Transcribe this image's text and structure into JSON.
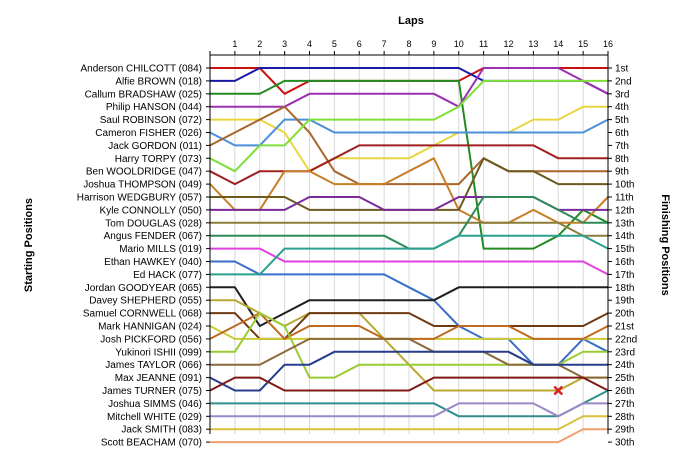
{
  "chart_data": {
    "type": "line",
    "xlabel": "Laps",
    "ylabel_left": "Starting Positions",
    "ylabel_right": "Finishing Positions",
    "laps": [
      1,
      2,
      3,
      4,
      5,
      6,
      7,
      8,
      9,
      10,
      11,
      12,
      13,
      14,
      15,
      16
    ],
    "lap_labels": [
      "1",
      "2",
      "3",
      "4",
      "5",
      "6",
      "7",
      "8",
      "9",
      "10",
      "11",
      "12",
      "13",
      "14",
      "15",
      "16"
    ],
    "drivers": [
      "Anderson CHILCOTT (084)",
      "Alfie BROWN (018)",
      "Callum BRADSHAW (025)",
      "Philip HANSON (044)",
      "Saul ROBINSON (072)",
      "Cameron FISHER (026)",
      "Jack GORDON (011)",
      "Harry TORPY (073)",
      "Ben WOOLDRIDGE (047)",
      "Joshua THOMPSON (049)",
      "Harrison WEDGBURY (057)",
      "Kyle CONNOLLY (050)",
      "Tom DOUGLAS (028)",
      "Angus FENDER (067)",
      "Mario MILLS (019)",
      "Ethan HAWKEY (040)",
      "Ed HACK (077)",
      "Jordan GOODYEAR (065)",
      "Davey SHEPHERD (055)",
      "Samuel CORNWELL (068)",
      "Mark HANNIGAN (024)",
      "Josh PICKFORD (056)",
      "Yukinori ISHII (099)",
      "James TAYLOR (066)",
      "Max JEANNE (091)",
      "James TURNER (075)",
      "Joshua SIMMS (046)",
      "Mitchell WHITE (029)",
      "Jack SMITH (083)",
      "Scott BEACHAM (070)"
    ],
    "finish_labels": [
      "1st",
      "2nd",
      "3rd",
      "4th",
      "5th",
      "6th",
      "7th",
      "8th",
      "9th",
      "10th",
      "11th",
      "12th",
      "13th",
      "14th",
      "15th",
      "16th",
      "17th",
      "18th",
      "19th",
      "20th",
      "21st",
      "22nd",
      "23rd",
      "24th",
      "25th",
      "26th",
      "27th",
      "28th",
      "29th",
      "30th"
    ],
    "series": [
      {
        "color": "#cc1111",
        "positions": [
          1,
          1,
          3,
          2,
          2,
          2,
          2,
          2,
          2,
          2,
          1,
          1,
          1,
          1,
          1,
          1
        ]
      },
      {
        "color": "#1a1aa8",
        "positions": [
          2,
          1,
          1,
          1,
          1,
          1,
          1,
          1,
          1,
          1,
          2,
          2,
          2,
          2,
          2,
          3
        ]
      },
      {
        "color": "#228b22",
        "positions": [
          3,
          3,
          2,
          2,
          2,
          2,
          2,
          2,
          2,
          2,
          15,
          15,
          15,
          14,
          12,
          13
        ]
      },
      {
        "color": "#9b30b0",
        "positions": [
          4,
          4,
          4,
          3,
          3,
          3,
          3,
          3,
          3,
          4,
          1,
          1,
          1,
          1,
          2,
          3
        ]
      },
      {
        "color": "#e8d640",
        "positions": [
          5,
          5,
          6,
          9,
          8,
          8,
          8,
          8,
          7,
          6,
          6,
          6,
          5,
          5,
          4,
          4
        ]
      },
      {
        "color": "#4a90d9",
        "positions": [
          7,
          7,
          5,
          5,
          6,
          6,
          6,
          6,
          6,
          6,
          6,
          6,
          6,
          6,
          6,
          5
        ]
      },
      {
        "color": "#a8652a",
        "positions": [
          6,
          5,
          4,
          6,
          9,
          10,
          10,
          10,
          10,
          10,
          8,
          9,
          9,
          9,
          9,
          9
        ]
      },
      {
        "color": "#7fe03a",
        "positions": [
          9,
          7,
          7,
          5,
          5,
          5,
          5,
          5,
          5,
          4,
          2,
          2,
          2,
          2,
          2,
          2
        ]
      },
      {
        "color": "#a02020",
        "positions": [
          10,
          9,
          9,
          9,
          8,
          7,
          7,
          7,
          7,
          7,
          7,
          7,
          7,
          8,
          8,
          8
        ]
      },
      {
        "color": "#c87f2a",
        "positions": [
          12,
          12,
          9,
          9,
          10,
          10,
          10,
          9,
          8,
          12,
          13,
          13,
          12,
          13,
          13,
          11
        ]
      },
      {
        "color": "#6e5a1e",
        "positions": [
          11,
          11,
          11,
          12,
          12,
          12,
          12,
          12,
          12,
          12,
          8,
          9,
          9,
          10,
          10,
          10
        ]
      },
      {
        "color": "#7a2a9a",
        "positions": [
          12,
          12,
          12,
          11,
          11,
          11,
          12,
          12,
          12,
          11,
          11,
          11,
          11,
          12,
          12,
          12
        ]
      },
      {
        "color": "#8b7f3a",
        "positions": [
          13,
          13,
          13,
          13,
          13,
          13,
          13,
          13,
          13,
          13,
          13,
          13,
          13,
          13,
          14,
          14
        ]
      },
      {
        "color": "#2e8b57",
        "positions": [
          14,
          14,
          14,
          14,
          14,
          14,
          14,
          15,
          15,
          14,
          11,
          11,
          11,
          12,
          13,
          13
        ]
      },
      {
        "color": "#e040e0",
        "positions": [
          15,
          15,
          16,
          16,
          16,
          16,
          16,
          16,
          16,
          16,
          16,
          16,
          16,
          16,
          16,
          17
        ]
      },
      {
        "color": "#3a6ec8",
        "positions": [
          16,
          17,
          17,
          17,
          17,
          17,
          17,
          18,
          19,
          21,
          22,
          22,
          24,
          24,
          22,
          23
        ]
      },
      {
        "color": "#2aa090",
        "positions": [
          17,
          17,
          15,
          15,
          15,
          15,
          15,
          15,
          15,
          14,
          14,
          14,
          14,
          14,
          14,
          15
        ]
      },
      {
        "color": "#202020",
        "positions": [
          18,
          21,
          20,
          19,
          19,
          19,
          19,
          19,
          19,
          18,
          18,
          18,
          18,
          18,
          18,
          18
        ]
      },
      {
        "color": "#b8a830",
        "positions": [
          19,
          20,
          21,
          20,
          20,
          20,
          22,
          24,
          26,
          26,
          26,
          26,
          26,
          26,
          25,
          25
        ]
      },
      {
        "color": "#6e3a14",
        "positions": [
          20,
          22,
          22,
          20,
          20,
          20,
          20,
          20,
          21,
          21,
          21,
          21,
          21,
          21,
          21,
          20
        ]
      },
      {
        "color": "#cccc33",
        "positions": [
          22,
          22,
          22,
          22,
          22,
          22,
          22,
          22,
          22,
          22,
          22,
          22,
          22,
          22,
          22,
          22
        ]
      },
      {
        "color": "#c06a20",
        "positions": [
          21,
          20,
          22,
          21,
          21,
          21,
          22,
          22,
          22,
          21,
          21,
          21,
          22,
          22,
          22,
          21
        ]
      },
      {
        "color": "#99cc33",
        "positions": [
          23,
          20,
          21,
          25,
          25,
          24,
          24,
          24,
          24,
          24,
          24,
          24,
          24,
          24,
          23,
          23
        ]
      },
      {
        "color": "#8a6a3a",
        "positions": [
          24,
          24,
          23,
          22,
          22,
          22,
          22,
          22,
          23,
          23,
          23,
          24,
          24,
          24,
          25,
          25
        ]
      },
      {
        "color": "#283c8c",
        "positions": [
          26,
          26,
          24,
          24,
          23,
          23,
          23,
          23,
          23,
          23,
          23,
          23,
          24,
          24,
          24,
          24
        ]
      },
      {
        "color": "#801818",
        "positions": [
          25,
          25,
          26,
          26,
          26,
          26,
          26,
          26,
          25,
          25,
          25,
          25,
          25,
          25,
          25,
          26
        ]
      },
      {
        "color": "#2e8e8e",
        "positions": [
          27,
          27,
          27,
          27,
          27,
          27,
          27,
          27,
          27,
          28,
          28,
          28,
          28,
          28,
          27,
          26
        ]
      },
      {
        "color": "#9a88c8",
        "positions": [
          28,
          28,
          28,
          28,
          28,
          28,
          28,
          28,
          28,
          27,
          27,
          27,
          27,
          28,
          27,
          27
        ]
      },
      {
        "color": "#d8c040",
        "positions": [
          29,
          29,
          29,
          29,
          29,
          29,
          29,
          29,
          29,
          29,
          29,
          29,
          29,
          29,
          28,
          28
        ]
      },
      {
        "color": "#f0a070",
        "positions": [
          30,
          30,
          30,
          30,
          30,
          30,
          30,
          30,
          30,
          30,
          30,
          30,
          30,
          30,
          29,
          29
        ]
      }
    ],
    "markers": [
      {
        "type": "retired",
        "driver_index": 25,
        "lap": 14,
        "position": 26,
        "color": "#dd2222"
      }
    ],
    "grid": true,
    "legend": "none"
  }
}
